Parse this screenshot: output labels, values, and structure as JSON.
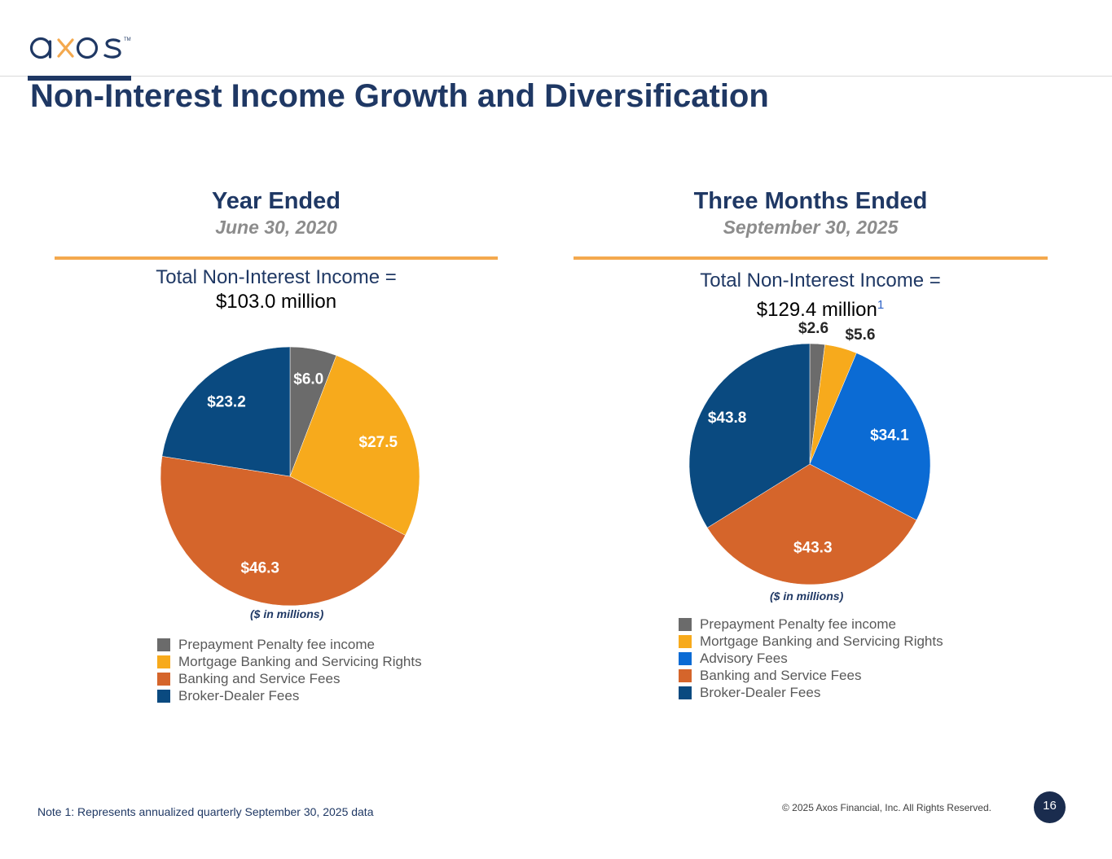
{
  "header": {
    "logo_text": "axos",
    "title": "Non-Interest Income Growth and Diversification"
  },
  "colors": {
    "prepayment": "#6b6b6b",
    "mortgage": "#f7aa1c",
    "advisory": "#0b6bd4",
    "banking": "#d5652b",
    "broker": "#0a4a80",
    "accent": "#f4a94e",
    "navy": "#1f3864"
  },
  "left": {
    "heading": "Year Ended",
    "subheading": "June 30, 2020",
    "total_label": "Total Non-Interest Income =",
    "total_value": "$103.0 million",
    "units": "($ in millions)"
  },
  "right": {
    "heading": "Three Months Ended",
    "subheading": "September 30, 2025",
    "total_label": "Total Non-Interest Income =",
    "total_value": "$129.4 million",
    "footnote_marker": "1",
    "units": "($ in millions)"
  },
  "chart_data": [
    {
      "type": "pie",
      "title": "Year Ended June 30, 2020",
      "units": "$ in millions",
      "total": 103.0,
      "categories": [
        "Prepayment Penalty fee income",
        "Mortgage Banking and Servicing Rights",
        "Banking and Service Fees",
        "Broker-Dealer Fees"
      ],
      "values": [
        6.0,
        27.5,
        46.3,
        23.2
      ],
      "labels": [
        "$6.0",
        "$27.5",
        "$46.3",
        "$23.2"
      ],
      "color_keys": [
        "prepayment",
        "mortgage",
        "banking",
        "broker"
      ],
      "legend": [
        "Prepayment Penalty fee income",
        "Mortgage Banking and Servicing Rights",
        "Banking and Service Fees",
        "Broker-Dealer Fees"
      ],
      "legend_position": "bottom"
    },
    {
      "type": "pie",
      "title": "Three Months Ended September 30, 2025",
      "units": "$ in millions",
      "total": 129.4,
      "categories": [
        "Prepayment Penalty fee income",
        "Mortgage Banking and Servicing Rights",
        "Advisory Fees",
        "Banking and Service Fees",
        "Broker-Dealer Fees"
      ],
      "values": [
        2.6,
        5.6,
        34.1,
        43.3,
        43.8
      ],
      "labels": [
        "$2.6",
        "$5.6",
        "$34.1",
        "$43.3",
        "$43.8"
      ],
      "color_keys": [
        "prepayment",
        "mortgage",
        "advisory",
        "banking",
        "broker"
      ],
      "legend": [
        "Prepayment Penalty fee income",
        "Mortgage Banking and Servicing Rights",
        "Advisory Fees",
        "Banking and Service Fees",
        "Broker-Dealer Fees"
      ],
      "legend_position": "bottom"
    }
  ],
  "footer": {
    "note": "Note 1: Represents annualized quarterly September 30, 2025 data",
    "copyright": "© 2025 Axos Financial, Inc. All Rights Reserved.",
    "page_number": "16"
  }
}
